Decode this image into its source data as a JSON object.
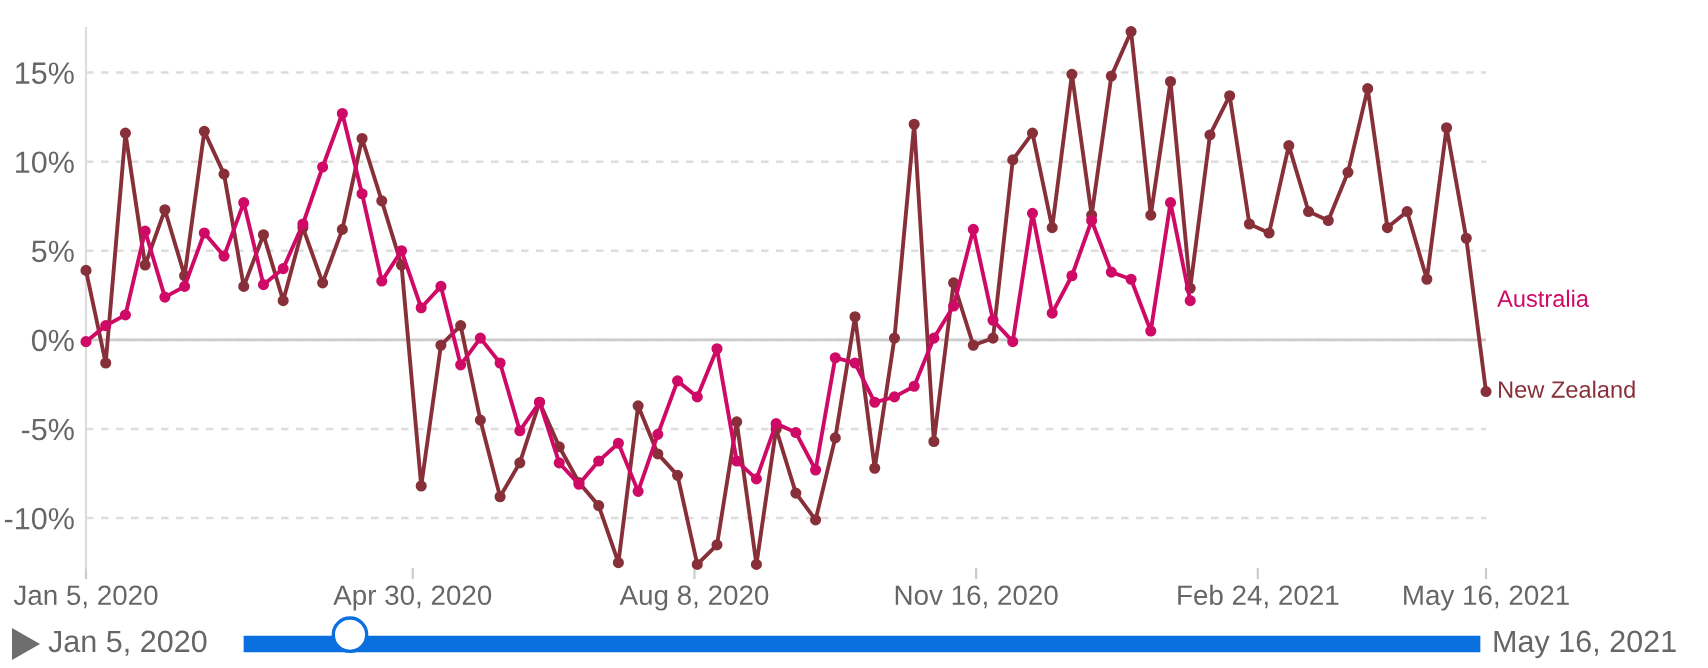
{
  "chart_data": {
    "type": "line",
    "x": [
      "2020-01-05",
      "2020-01-12",
      "2020-01-19",
      "2020-01-26",
      "2020-02-02",
      "2020-02-09",
      "2020-02-16",
      "2020-02-23",
      "2020-03-01",
      "2020-03-08",
      "2020-03-15",
      "2020-03-22",
      "2020-03-29",
      "2020-04-05",
      "2020-04-12",
      "2020-04-19",
      "2020-04-26",
      "2020-05-03",
      "2020-05-10",
      "2020-05-17",
      "2020-05-24",
      "2020-05-31",
      "2020-06-07",
      "2020-06-14",
      "2020-06-21",
      "2020-06-28",
      "2020-07-05",
      "2020-07-12",
      "2020-07-19",
      "2020-07-26",
      "2020-08-02",
      "2020-08-09",
      "2020-08-16",
      "2020-08-23",
      "2020-08-30",
      "2020-09-06",
      "2020-09-13",
      "2020-09-20",
      "2020-09-27",
      "2020-10-04",
      "2020-10-11",
      "2020-10-18",
      "2020-10-25",
      "2020-11-01",
      "2020-11-08",
      "2020-11-15",
      "2020-11-22",
      "2020-11-29",
      "2020-12-06",
      "2020-12-13",
      "2020-12-20",
      "2020-12-27",
      "2021-01-03",
      "2021-01-10",
      "2021-01-17",
      "2021-01-24",
      "2021-01-31",
      "2021-02-07",
      "2021-02-14",
      "2021-02-21",
      "2021-02-28",
      "2021-03-07",
      "2021-03-14",
      "2021-03-21",
      "2021-03-28",
      "2021-04-04",
      "2021-04-11",
      "2021-04-18",
      "2021-04-25",
      "2021-05-02",
      "2021-05-09",
      "2021-05-16"
    ],
    "series": [
      {
        "name": "Australia",
        "color": "#cf0a66",
        "values": [
          -0.1,
          0.8,
          1.4,
          6.1,
          2.4,
          3.0,
          6.0,
          4.7,
          7.7,
          3.1,
          4.0,
          6.5,
          9.7,
          12.7,
          8.2,
          3.3,
          5.0,
          1.8,
          3.0,
          -1.4,
          0.1,
          -1.3,
          -5.1,
          -3.5,
          -6.9,
          -8.1,
          -6.8,
          -5.8,
          -8.5,
          -5.3,
          -2.3,
          -3.2,
          -0.5,
          -6.8,
          -7.8,
          -4.7,
          -5.2,
          -7.3,
          -1.0,
          -1.3,
          -3.5,
          -3.2,
          -2.6,
          0.1,
          1.9,
          6.2,
          1.1,
          -0.1,
          7.1,
          1.5,
          3.6,
          6.7,
          3.8,
          3.4,
          0.5,
          7.7,
          2.2,
          null,
          null,
          null,
          null,
          null,
          null,
          null,
          null,
          null,
          null,
          null,
          null,
          null,
          null,
          null
        ]
      },
      {
        "name": "New Zealand",
        "color": "#883039",
        "values": [
          3.9,
          -1.3,
          11.6,
          4.2,
          7.3,
          3.6,
          11.7,
          9.3,
          3.0,
          5.9,
          2.2,
          6.3,
          3.2,
          6.2,
          11.3,
          7.8,
          4.2,
          -8.2,
          -0.3,
          0.8,
          -4.5,
          -8.8,
          -6.9,
          -3.5,
          -6.0,
          -8.0,
          -9.3,
          -12.5,
          -3.7,
          -6.4,
          -7.6,
          -12.6,
          -11.5,
          -4.6,
          -12.6,
          -5.0,
          -8.6,
          -10.1,
          -5.5,
          1.3,
          -7.2,
          0.1,
          12.1,
          -5.7,
          3.2,
          -0.3,
          0.1,
          10.1,
          11.6,
          6.3,
          14.9,
          7.0,
          14.8,
          17.3,
          7.0,
          14.5,
          2.9,
          11.5,
          13.7,
          6.5,
          6.0,
          10.9,
          7.2,
          6.7,
          9.4,
          14.1,
          6.3,
          7.2,
          3.4,
          11.9,
          5.7,
          -2.9
        ]
      }
    ],
    "xlim": [
      "2020-01-05",
      "2021-05-16"
    ],
    "xticks": [
      {
        "value": "2020-01-05",
        "label": "Jan 5, 2020"
      },
      {
        "value": "2020-04-30",
        "label": "Apr 30, 2020"
      },
      {
        "value": "2020-08-08",
        "label": "Aug 8, 2020"
      },
      {
        "value": "2020-11-16",
        "label": "Nov 16, 2020"
      },
      {
        "value": "2021-02-24",
        "label": "Feb 24, 2021"
      },
      {
        "value": "2021-05-16",
        "label": "May 16, 2021"
      }
    ],
    "yticks": [
      {
        "value": -10,
        "label": "-10%"
      },
      {
        "value": -5,
        "label": "-5%"
      },
      {
        "value": 0,
        "label": "0%"
      },
      {
        "value": 5,
        "label": "5%"
      },
      {
        "value": 10,
        "label": "10%"
      },
      {
        "value": 15,
        "label": "15%"
      }
    ],
    "ylim": [
      -12.8,
      17.5
    ],
    "grid": "y",
    "ref_lines": [
      {
        "axis": "y",
        "value": 0,
        "color": "#cccccc"
      }
    ],
    "marker": "circle",
    "line_style": "solid",
    "annotations": [
      "Jan 5, 2020",
      "May 16, 2021"
    ]
  }
}
